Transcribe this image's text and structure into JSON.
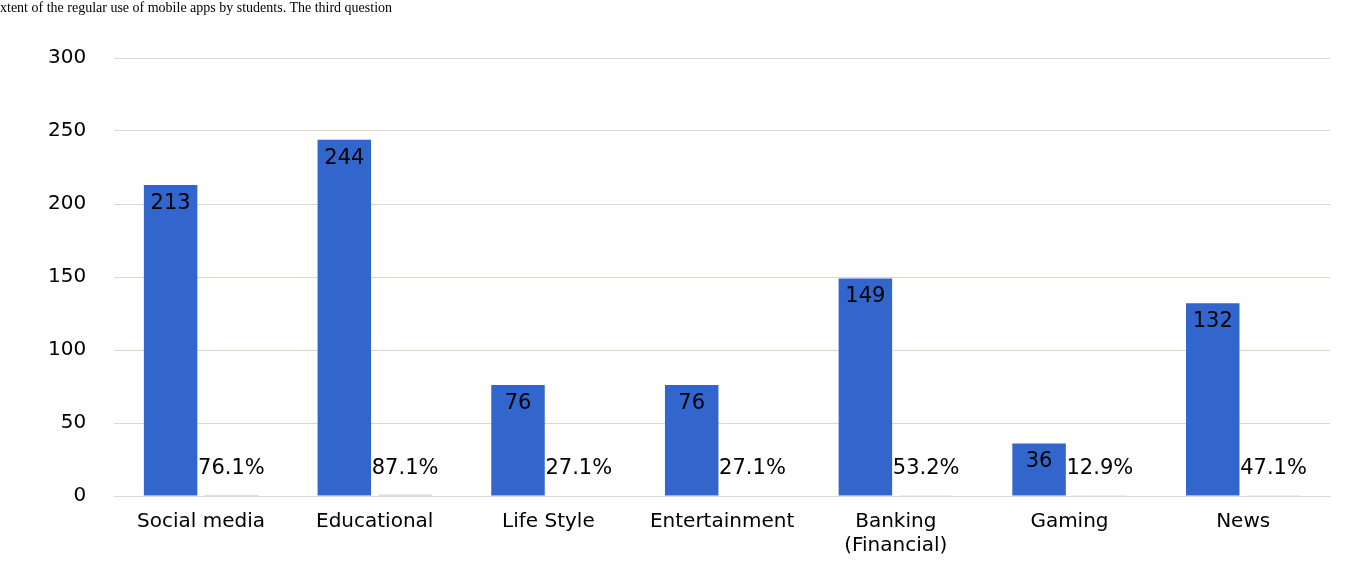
{
  "chart_data": {
    "type": "bar",
    "title": "xtent of the regular use of mobile apps by students. The third question",
    "categories": [
      "Social media",
      "Educational",
      "Life Style",
      "Entertainment",
      "Banking (Financial)",
      "Gaming",
      "News"
    ],
    "series": [
      {
        "color": "#3366cc",
        "values": [
          213,
          244,
          76,
          76,
          149,
          36,
          132
        ],
        "value_labels": [
          "213",
          "244",
          "76",
          "76",
          "149",
          "36",
          "132"
        ]
      },
      {
        "color": "#a9b9dc",
        "values": [
          0.761,
          0.871,
          0.271,
          0.271,
          0.532,
          0.129,
          0.471
        ],
        "value_labels": [
          "76.1%",
          "87.1%",
          "27.1%",
          "27.1%",
          "53.2%",
          "12.9%",
          "47.1%"
        ]
      }
    ],
    "ylim": [
      0,
      300
    ],
    "yticks": [
      0,
      50,
      100,
      150,
      200,
      250,
      300
    ],
    "grid": "y",
    "legend": false
  }
}
